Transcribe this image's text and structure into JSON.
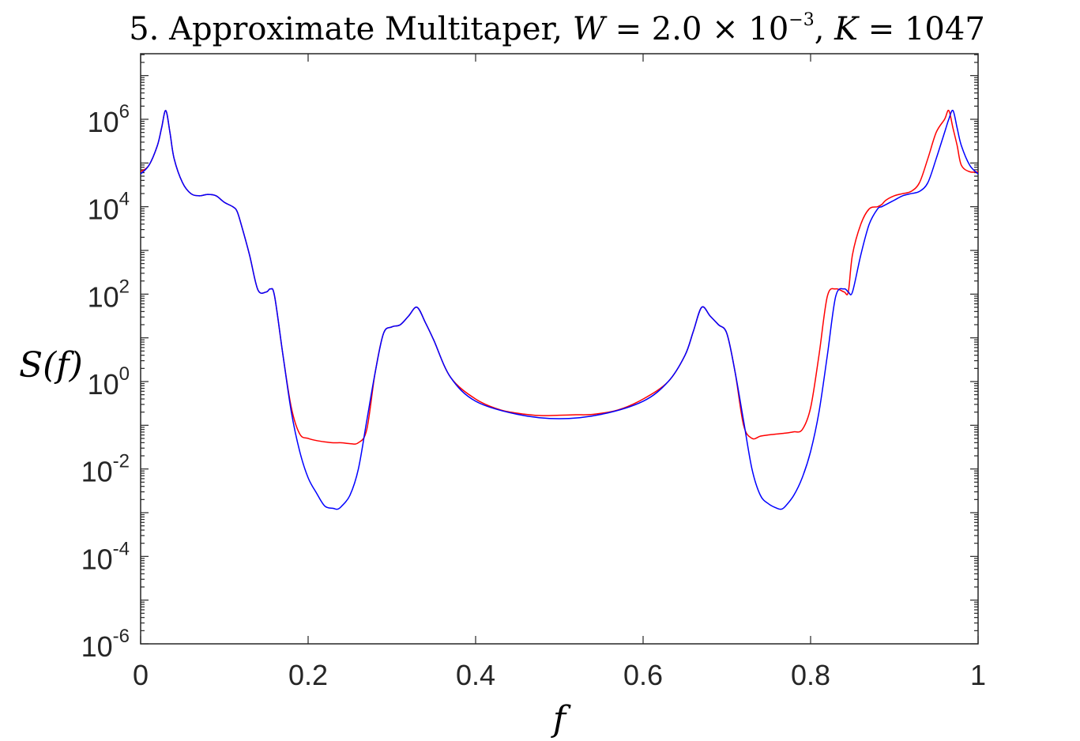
{
  "chart_data": {
    "type": "line",
    "title_parts": {
      "prefix": "5.  Approximate Multitaper, ",
      "w_var": "W",
      "w_eq": " = 2.0 × 10",
      "w_exp": "−3",
      "comma": ", ",
      "k_var": "K",
      "k_eq": " = 1047"
    },
    "xlabel": "f",
    "ylabel": "S(f)",
    "xlim": [
      0,
      1
    ],
    "ylim_log10": [
      -6,
      7.5
    ],
    "y_scale": "log",
    "grid": false,
    "legend": "none",
    "x_ticks": [
      {
        "value": 0,
        "label": "0"
      },
      {
        "value": 0.2,
        "label": "0.2"
      },
      {
        "value": 0.4,
        "label": "0.4"
      },
      {
        "value": 0.6,
        "label": "0.6"
      },
      {
        "value": 0.8,
        "label": "0.8"
      },
      {
        "value": 1,
        "label": "1"
      }
    ],
    "y_ticks": [
      {
        "exp": 6,
        "base": "10",
        "sup": "6"
      },
      {
        "exp": 4,
        "base": "10",
        "sup": "4"
      },
      {
        "exp": 2,
        "base": "10",
        "sup": "2"
      },
      {
        "exp": 0,
        "base": "10",
        "sup": "0"
      },
      {
        "exp": -2,
        "base": "10",
        "sup": "-2"
      },
      {
        "exp": -4,
        "base": "10",
        "sup": "-4"
      },
      {
        "exp": -6,
        "base": "10",
        "sup": "-6"
      }
    ],
    "series": [
      {
        "color": "#0000ff",
        "x": [
          0,
          0.01,
          0.02,
          0.025,
          0.03,
          0.035,
          0.04,
          0.05,
          0.06,
          0.07,
          0.08,
          0.09,
          0.1,
          0.11,
          0.115,
          0.12,
          0.13,
          0.14,
          0.15,
          0.155,
          0.16,
          0.17,
          0.18,
          0.19,
          0.2,
          0.21,
          0.22,
          0.23,
          0.235,
          0.24,
          0.25,
          0.26,
          0.27,
          0.28,
          0.29,
          0.3,
          0.31,
          0.32,
          0.33,
          0.34,
          0.35,
          0.37,
          0.4,
          0.45,
          0.5,
          0.55,
          0.6,
          0.63,
          0.65,
          0.66,
          0.67,
          0.68,
          0.69,
          0.7,
          0.71,
          0.72,
          0.73,
          0.74,
          0.75,
          0.76,
          0.765,
          0.77,
          0.78,
          0.79,
          0.8,
          0.81,
          0.82,
          0.83,
          0.84,
          0.845,
          0.85,
          0.86,
          0.87,
          0.88,
          0.885,
          0.89,
          0.9,
          0.91,
          0.92,
          0.93,
          0.94,
          0.95,
          0.96,
          0.965,
          0.97,
          0.975,
          0.98,
          0.99,
          1
        ],
        "log10y": [
          4.75,
          4.95,
          5.4,
          5.8,
          6.2,
          5.7,
          5.1,
          4.55,
          4.3,
          4.25,
          4.28,
          4.25,
          4.1,
          4.0,
          3.9,
          3.6,
          2.9,
          2.1,
          2.05,
          2.12,
          1.95,
          0.6,
          -0.7,
          -1.6,
          -2.2,
          -2.55,
          -2.85,
          -2.9,
          -2.92,
          -2.85,
          -2.6,
          -2.0,
          -0.9,
          0.2,
          1.1,
          1.25,
          1.3,
          1.5,
          1.7,
          1.35,
          0.95,
          0.1,
          -0.45,
          -0.75,
          -0.85,
          -0.75,
          -0.45,
          0.0,
          0.6,
          1.15,
          1.7,
          1.5,
          1.3,
          1.1,
          0.2,
          -0.9,
          -2.0,
          -2.6,
          -2.8,
          -2.9,
          -2.92,
          -2.85,
          -2.6,
          -2.2,
          -1.6,
          -0.7,
          0.6,
          1.95,
          2.12,
          2.05,
          2.05,
          2.9,
          3.6,
          3.95,
          4.0,
          4.05,
          4.15,
          4.25,
          4.3,
          4.35,
          4.55,
          5.1,
          5.7,
          6.0,
          6.2,
          5.8,
          5.4,
          4.95,
          4.75
        ]
      },
      {
        "color": "#ff0000",
        "x": [
          0,
          0.01,
          0.02,
          0.025,
          0.03,
          0.035,
          0.04,
          0.05,
          0.06,
          0.07,
          0.08,
          0.09,
          0.1,
          0.11,
          0.115,
          0.12,
          0.13,
          0.14,
          0.15,
          0.155,
          0.16,
          0.17,
          0.18,
          0.19,
          0.2,
          0.21,
          0.22,
          0.23,
          0.24,
          0.25,
          0.26,
          0.27,
          0.28,
          0.29,
          0.3,
          0.31,
          0.32,
          0.33,
          0.34,
          0.35,
          0.37,
          0.4,
          0.43,
          0.46,
          0.48,
          0.5,
          0.52,
          0.54,
          0.57,
          0.6,
          0.63,
          0.65,
          0.66,
          0.67,
          0.68,
          0.69,
          0.7,
          0.71,
          0.72,
          0.73,
          0.74,
          0.75,
          0.76,
          0.77,
          0.78,
          0.79,
          0.8,
          0.81,
          0.82,
          0.83,
          0.84,
          0.845,
          0.85,
          0.86,
          0.87,
          0.88,
          0.885,
          0.89,
          0.9,
          0.91,
          0.92,
          0.93,
          0.94,
          0.95,
          0.96,
          0.965,
          0.97,
          0.975,
          0.98,
          0.99,
          1
        ],
        "log10y": [
          4.8,
          4.95,
          5.4,
          5.8,
          6.2,
          5.7,
          5.1,
          4.55,
          4.3,
          4.25,
          4.28,
          4.25,
          4.1,
          4.0,
          3.9,
          3.6,
          2.9,
          2.1,
          2.05,
          2.12,
          1.95,
          0.6,
          -0.6,
          -1.2,
          -1.3,
          -1.35,
          -1.38,
          -1.4,
          -1.4,
          -1.42,
          -1.4,
          -1.1,
          0.2,
          1.1,
          1.25,
          1.3,
          1.5,
          1.7,
          1.35,
          0.95,
          0.1,
          -0.4,
          -0.65,
          -0.75,
          -0.78,
          -0.77,
          -0.76,
          -0.75,
          -0.65,
          -0.4,
          0.0,
          0.6,
          1.15,
          1.7,
          1.5,
          1.3,
          1.1,
          0.2,
          -1.0,
          -1.3,
          -1.25,
          -1.22,
          -1.2,
          -1.18,
          -1.15,
          -1.1,
          -0.6,
          0.6,
          1.95,
          2.12,
          2.05,
          2.05,
          2.9,
          3.6,
          3.95,
          4.0,
          4.05,
          4.15,
          4.25,
          4.3,
          4.35,
          4.55,
          5.1,
          5.7,
          6.0,
          6.2,
          5.8,
          5.4,
          4.95,
          4.8,
          4.8
        ]
      }
    ]
  }
}
